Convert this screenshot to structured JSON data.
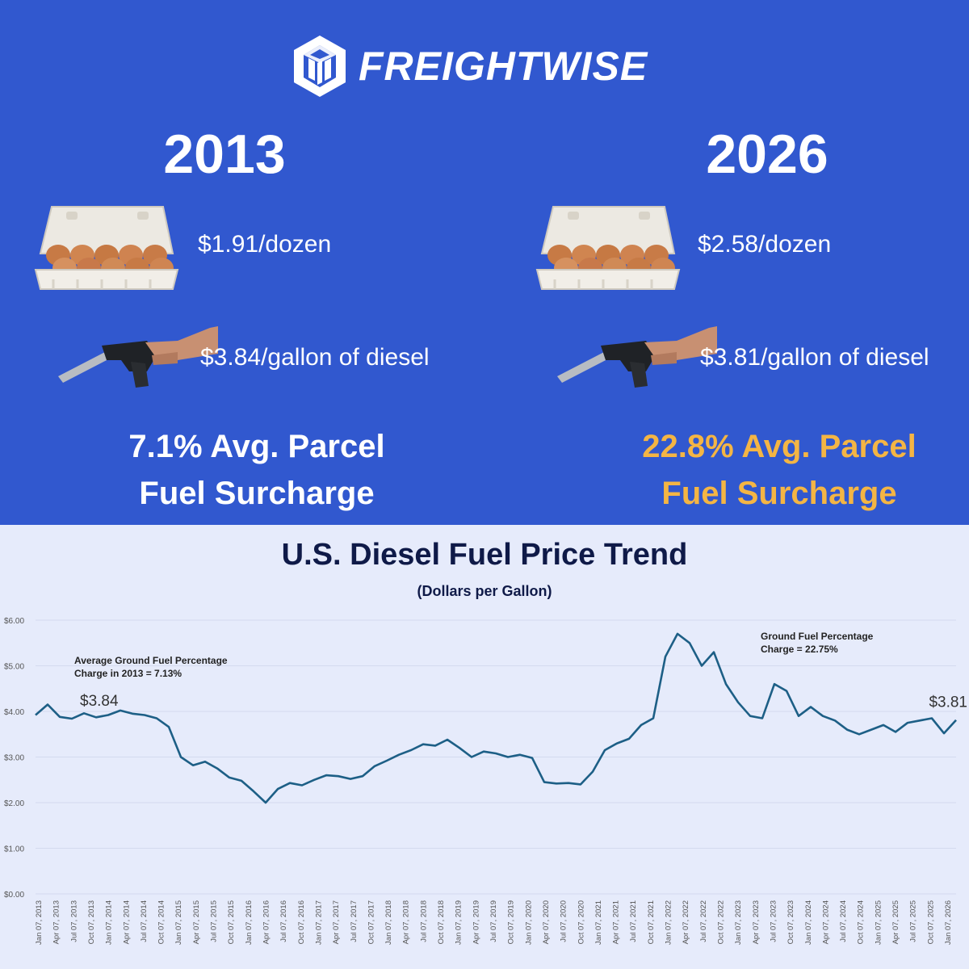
{
  "brand": {
    "name": "FREIGHTWISE"
  },
  "left": {
    "year": "2013",
    "egg_price": "$1.91/dozen",
    "diesel_price": "$3.84/gallon of diesel",
    "surcharge_line1": "7.1% Avg. Parcel",
    "surcharge_line2": "Fuel Surcharge"
  },
  "right": {
    "year": "2026",
    "egg_price": "$2.58/dozen",
    "diesel_price": "$3.81/gallon of diesel",
    "surcharge_line1": "22.8% Avg. Parcel",
    "surcharge_line2": "Fuel Surcharge"
  },
  "colors": {
    "background_top": "#3158cf",
    "accent": "#f4b544",
    "line": "#1d5f86",
    "chart_bg": "#e6ebfb"
  },
  "icons": {
    "logo": "freightwise-cube-logo",
    "eggs": "egg-carton-icon",
    "pump": "fuel-nozzle-icon"
  },
  "chart_data": {
    "type": "line",
    "title": "U.S. Diesel Fuel Price Trend",
    "subtitle": "(Dollars per Gallon)",
    "ylim": [
      0,
      6
    ],
    "yticks": [
      "$0.00",
      "$1.00",
      "$2.00",
      "$3.00",
      "$4.00",
      "$5.00",
      "$6.00"
    ],
    "xticks": [
      "Jan 07, 2013",
      "Apr 07, 2013",
      "Jul 07, 2013",
      "Oct 07, 2013",
      "Jan 07, 2014",
      "Apr 07, 2014",
      "Jul 07, 2014",
      "Oct 07, 2014",
      "Jan 07, 2015",
      "Apr 07, 2015",
      "Jul 07, 2015",
      "Oct 07, 2015",
      "Jan 07, 2016",
      "Apr 07, 2016",
      "Jul 07, 2016",
      "Oct 07, 2016",
      "Jan 07, 2017",
      "Apr 07, 2017",
      "Jul 07, 2017",
      "Oct 07, 2017",
      "Jan 07, 2018",
      "Apr 07, 2018",
      "Jul 07, 2018",
      "Oct 07, 2018",
      "Jan 07, 2019",
      "Apr 07, 2019",
      "Jul 07, 2019",
      "Oct 07, 2019",
      "Jan 07, 2020",
      "Apr 07, 2020",
      "Jul 07, 2020",
      "Oct 07, 2020",
      "Jan 07, 2021",
      "Apr 07, 2021",
      "Jul 07, 2021",
      "Oct 07, 2021",
      "Jan 07, 2022",
      "Apr 07, 2022",
      "Jul 07, 2022",
      "Oct 07, 2022",
      "Jan 07, 2023",
      "Apr 07, 2023",
      "Jul 07, 2023",
      "Oct 07, 2023",
      "Jan 07, 2024",
      "Apr 07, 2024",
      "Jul 07, 2024",
      "Oct 07, 2024",
      "Jan 07, 2025",
      "Apr 07, 2025",
      "Jul 07, 2025",
      "Oct 07, 2025",
      "Jan 07, 2026"
    ],
    "series": [
      {
        "values": [
          3.92,
          4.15,
          3.88,
          3.84,
          3.96,
          3.87,
          3.92,
          4.02,
          3.95,
          3.92,
          3.85,
          3.66,
          3.0,
          2.82,
          2.9,
          2.75,
          2.55,
          2.48,
          2.25,
          2.0,
          2.3,
          2.43,
          2.38,
          2.5,
          2.6,
          2.58,
          2.52,
          2.58,
          2.8,
          2.92,
          3.05,
          3.15,
          3.28,
          3.25,
          3.38,
          3.2,
          3.0,
          3.12,
          3.08,
          3.0,
          3.05,
          2.98,
          2.45,
          2.42,
          2.43,
          2.4,
          2.68,
          3.15,
          3.3,
          3.4,
          3.7,
          3.85,
          5.2,
          5.7,
          5.5,
          5.0,
          5.3,
          4.6,
          4.2,
          3.9,
          3.85,
          4.6,
          4.45,
          3.9,
          4.1,
          3.9,
          3.8,
          3.6,
          3.5,
          3.6,
          3.7,
          3.55,
          3.75,
          3.8,
          3.85,
          3.52,
          3.81
        ]
      }
    ],
    "point_labels": [
      {
        "text": "$3.84",
        "index": 3
      },
      {
        "text": "$3.81",
        "index": 76
      }
    ],
    "annotations": [
      {
        "line1": "Average Ground Fuel Percentage",
        "line2": "Charge in 2013 = 7.13%"
      },
      {
        "line1": "Ground Fuel Percentage",
        "line2": "Charge = 22.75%"
      }
    ]
  }
}
